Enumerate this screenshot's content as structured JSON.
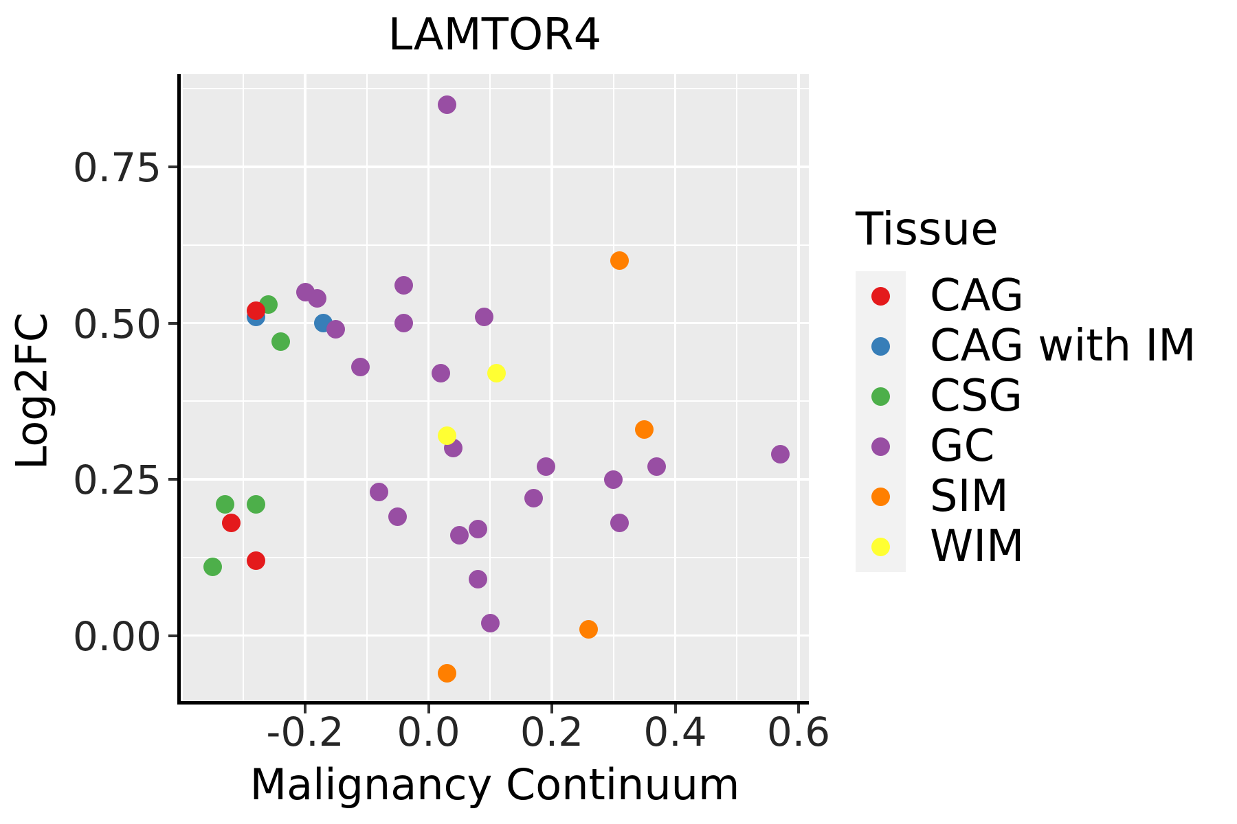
{
  "title": "LAMTOR4",
  "axes": {
    "x_label": "Malignancy Continuum",
    "y_label": "Log2FC",
    "x_tick_labels": [
      "-0.2",
      "0.0",
      "0.2",
      "0.4",
      "0.6"
    ],
    "y_tick_labels": [
      "0.00",
      "0.25",
      "0.50",
      "0.75"
    ]
  },
  "legend": {
    "title": "Tissue",
    "entries": [
      {
        "label": "CAG",
        "color": "#E41A1C"
      },
      {
        "label": "CAG with IM",
        "color": "#377EB8"
      },
      {
        "label": "CSG",
        "color": "#4DAF4A"
      },
      {
        "label": "GC",
        "color": "#984EA3"
      },
      {
        "label": "SIM",
        "color": "#FF7F00"
      },
      {
        "label": "WIM",
        "color": "#FFFF33"
      }
    ]
  },
  "colors": {
    "panel_background": "#EBEBEB",
    "gridline": "#FFFFFF",
    "legend_key_background": "#F2F2F2",
    "axis_line": "#000000",
    "tick_text": "#262626"
  },
  "chart_data": {
    "type": "scatter",
    "title": "LAMTOR4",
    "xlabel": "Malignancy Continuum",
    "ylabel": "Log2FC",
    "xlim": [
      -0.4017,
      0.6167
    ],
    "ylim": [
      -0.1049,
      0.8984
    ],
    "x_ticks": [
      -0.2,
      0.0,
      0.2,
      0.4,
      0.6
    ],
    "y_ticks": [
      0.0,
      0.25,
      0.5,
      0.75
    ],
    "x_minor_gridlines": [
      -0.3,
      -0.1,
      0.1,
      0.3,
      0.5
    ],
    "x_major_gridlines": [
      -0.4,
      -0.2,
      0.0,
      0.2,
      0.4,
      0.6
    ],
    "y_minor_gridlines": [
      0.125,
      0.375,
      0.625,
      0.875
    ],
    "y_major_gridlines": [
      0.0,
      0.25,
      0.5,
      0.75
    ],
    "grid": true,
    "legend_position": "right",
    "legend_title": "Tissue",
    "plot_order": [
      "CAG with IM",
      "CSG",
      "CAG",
      "GC",
      "SIM",
      "WIM"
    ],
    "series": [
      {
        "name": "CAG",
        "color": "#E41A1C",
        "points": [
          [
            -0.28,
            0.52
          ],
          [
            -0.32,
            0.18
          ],
          [
            -0.28,
            0.12
          ]
        ]
      },
      {
        "name": "CAG with IM",
        "color": "#377EB8",
        "points": [
          [
            -0.28,
            0.51
          ],
          [
            -0.17,
            0.5
          ]
        ]
      },
      {
        "name": "CSG",
        "color": "#4DAF4A",
        "points": [
          [
            -0.26,
            0.53
          ],
          [
            -0.24,
            0.47
          ],
          [
            -0.33,
            0.21
          ],
          [
            -0.28,
            0.21
          ],
          [
            -0.35,
            0.11
          ]
        ]
      },
      {
        "name": "GC",
        "color": "#984EA3",
        "points": [
          [
            0.03,
            0.85
          ],
          [
            -0.2,
            0.55
          ],
          [
            -0.18,
            0.54
          ],
          [
            -0.04,
            0.56
          ],
          [
            -0.04,
            0.5
          ],
          [
            -0.15,
            0.49
          ],
          [
            0.09,
            0.51
          ],
          [
            -0.11,
            0.43
          ],
          [
            0.02,
            0.42
          ],
          [
            0.04,
            0.3
          ],
          [
            -0.08,
            0.23
          ],
          [
            -0.05,
            0.19
          ],
          [
            0.05,
            0.16
          ],
          [
            0.08,
            0.17
          ],
          [
            0.08,
            0.09
          ],
          [
            0.1,
            0.02
          ],
          [
            0.19,
            0.27
          ],
          [
            0.17,
            0.22
          ],
          [
            0.3,
            0.25
          ],
          [
            0.31,
            0.18
          ],
          [
            0.37,
            0.27
          ],
          [
            0.57,
            0.29
          ]
        ]
      },
      {
        "name": "SIM",
        "color": "#FF7F00",
        "points": [
          [
            0.31,
            0.6
          ],
          [
            0.35,
            0.33
          ],
          [
            0.26,
            0.01
          ],
          [
            0.03,
            -0.06
          ]
        ]
      },
      {
        "name": "WIM",
        "color": "#FFFF33",
        "points": [
          [
            0.11,
            0.42
          ],
          [
            0.03,
            0.32
          ]
        ]
      }
    ]
  }
}
